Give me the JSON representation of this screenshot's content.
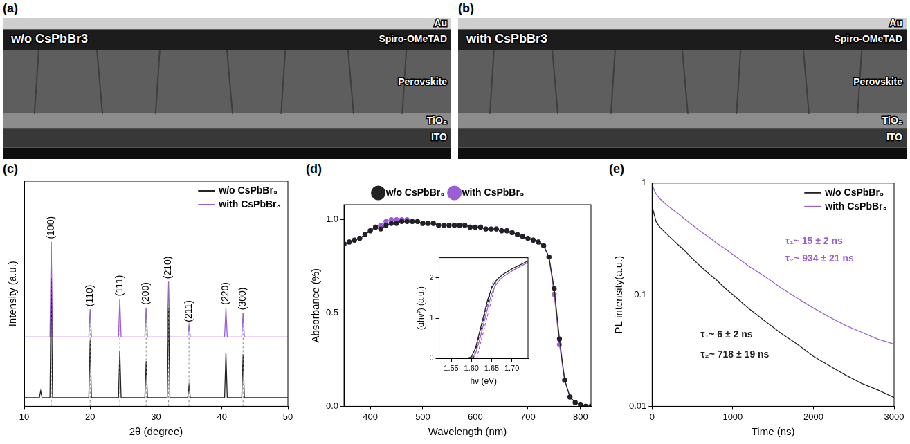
{
  "sem_images": [
    {
      "panel": "(a)",
      "label": "w/o CsPbBr3",
      "layers": [
        "Au",
        "Spiro-OMeTAD",
        "Perovskite",
        "TiO₂",
        "ITO"
      ]
    },
    {
      "panel": "(b)",
      "label": "with CsPbBr3",
      "layers": [
        "Au",
        "Spiro-OMeTAD",
        "Perovskite",
        "TiO₂",
        "ITO"
      ]
    }
  ],
  "chart_data": [
    {
      "panel": "(c)",
      "type": "line",
      "x_label": "2θ (degree)",
      "y_label": "Intensity (a.u.)",
      "xlim": [
        10,
        50
      ],
      "xticks": [
        10,
        20,
        30,
        40,
        50
      ],
      "ylim": [
        0,
        1.3
      ],
      "tick_labels": "x",
      "grid": false,
      "legend": "upper right",
      "peaks": [
        {
          "label": "(100)",
          "x": 14.1
        },
        {
          "label": "(110)",
          "x": 20.0
        },
        {
          "label": "(111)",
          "x": 24.5
        },
        {
          "label": "(200)",
          "x": 28.5
        },
        {
          "label": "(210)",
          "x": 31.9
        },
        {
          "label": "(211)",
          "x": 35.0
        },
        {
          "label": "(220)",
          "x": 40.6
        },
        {
          "label": "(300)",
          "x": 43.2
        }
      ],
      "series": [
        {
          "name": "w/o CsPbBr₃",
          "color": "#222222",
          "x": [
            10,
            12.3,
            12.5,
            12.7,
            13.9,
            14.1,
            14.3,
            19.8,
            20.0,
            20.2,
            24.3,
            24.5,
            24.7,
            28.3,
            28.5,
            28.7,
            31.7,
            31.9,
            32.1,
            34.8,
            35.0,
            35.2,
            40.4,
            40.6,
            40.8,
            43.0,
            43.2,
            43.4,
            50
          ],
          "values": [
            0.05,
            0.05,
            0.09,
            0.05,
            0.05,
            0.74,
            0.05,
            0.05,
            0.38,
            0.05,
            0.05,
            0.32,
            0.05,
            0.05,
            0.26,
            0.05,
            0.05,
            0.57,
            0.05,
            0.05,
            0.12,
            0.05,
            0.05,
            0.31,
            0.05,
            0.05,
            0.3,
            0.05,
            0.05
          ]
        },
        {
          "name": "with CsPbBr₃",
          "color": "#9a5fd6",
          "x": [
            10,
            13.9,
            14.1,
            14.3,
            19.8,
            20.0,
            20.2,
            24.3,
            24.5,
            24.7,
            28.3,
            28.5,
            28.7,
            31.7,
            31.9,
            32.1,
            34.8,
            35.0,
            35.2,
            40.4,
            40.6,
            40.8,
            43.0,
            43.2,
            43.4,
            50
          ],
          "values": [
            0.4,
            0.4,
            0.95,
            0.4,
            0.4,
            0.56,
            0.4,
            0.4,
            0.62,
            0.4,
            0.4,
            0.57,
            0.4,
            0.4,
            0.72,
            0.4,
            0.4,
            0.47,
            0.4,
            0.4,
            0.57,
            0.4,
            0.4,
            0.54,
            0.4,
            0.4
          ]
        }
      ]
    },
    {
      "panel": "(d)",
      "type": "line",
      "x_label": "Wavelength (nm)",
      "y_label": "Absorbance (%)",
      "xlim": [
        350,
        820
      ],
      "xticks": [
        400,
        500,
        600,
        700,
        800
      ],
      "ylim": [
        0,
        1.08
      ],
      "yticks": [
        {
          "value": 0,
          "label": "0.0"
        },
        {
          "value": 0.5,
          "label": "0.5"
        },
        {
          "value": 1,
          "label": "1.0"
        }
      ],
      "grid": false,
      "legend": "top",
      "x": [
        350,
        360,
        370,
        380,
        390,
        400,
        410,
        420,
        430,
        440,
        450,
        460,
        470,
        480,
        490,
        500,
        510,
        520,
        530,
        540,
        550,
        560,
        570,
        580,
        590,
        600,
        610,
        620,
        630,
        640,
        650,
        660,
        670,
        680,
        690,
        700,
        710,
        720,
        730,
        740,
        750,
        760,
        770,
        780,
        790,
        800,
        810,
        820
      ],
      "series": [
        {
          "name": "w/o CsPbBr₃",
          "color": "#222222",
          "marker": "circle",
          "values": [
            0.87,
            0.88,
            0.89,
            0.9,
            0.92,
            0.94,
            0.96,
            0.95,
            0.97,
            0.98,
            0.98,
            0.99,
            0.99,
            0.99,
            0.99,
            0.98,
            0.98,
            0.98,
            0.97,
            0.97,
            0.97,
            0.97,
            0.97,
            0.97,
            0.96,
            0.96,
            0.96,
            0.95,
            0.95,
            0.95,
            0.94,
            0.94,
            0.93,
            0.92,
            0.91,
            0.9,
            0.89,
            0.88,
            0.86,
            0.8,
            0.63,
            0.36,
            0.14,
            0.05,
            0.02,
            0.01,
            0,
            0
          ]
        },
        {
          "name": "with CsPbBr₃",
          "color": "#9a5fd6",
          "marker": "circle",
          "values": [
            0.87,
            0.88,
            0.89,
            0.9,
            0.92,
            0.94,
            0.96,
            0.97,
            0.99,
            1.0,
            1.0,
            1.0,
            1.0,
            0.99,
            0.99,
            0.98,
            0.98,
            0.98,
            0.97,
            0.97,
            0.97,
            0.97,
            0.97,
            0.97,
            0.96,
            0.96,
            0.96,
            0.95,
            0.95,
            0.95,
            0.94,
            0.94,
            0.93,
            0.92,
            0.91,
            0.9,
            0.89,
            0.88,
            0.86,
            0.8,
            0.6,
            0.33,
            0.14,
            0.05,
            0.02,
            0.01,
            0,
            0
          ]
        }
      ],
      "inset": {
        "type": "line",
        "x_label": "hν (eV)",
        "y_label": "(αhν²) (a.u.)",
        "xlim": [
          1.52,
          1.74
        ],
        "xticks": [
          1.55,
          {
            "value": 1.6,
            "label": "1.60"
          },
          1.65,
          {
            "value": 1.7,
            "label": "1.70"
          }
        ],
        "ylim": [
          0,
          2.5
        ],
        "yticks": [
          0,
          1,
          2
        ],
        "grid": false,
        "x": [
          1.52,
          1.54,
          1.56,
          1.58,
          1.59,
          1.6,
          1.61,
          1.62,
          1.63,
          1.64,
          1.65,
          1.66,
          1.67,
          1.68,
          1.7,
          1.72,
          1.74
        ],
        "series": [
          {
            "color": "#222222",
            "values": [
              0,
              0,
              0,
              0,
              0.01,
              0.04,
              0.25,
              0.65,
              1.05,
              1.45,
              1.75,
              1.92,
              2.02,
              2.1,
              2.22,
              2.32,
              2.42
            ]
          },
          {
            "color": "#9a5fd6",
            "values": [
              0,
              0,
              0,
              0,
              0,
              0.02,
              0.12,
              0.45,
              0.85,
              1.25,
              1.6,
              1.82,
              1.95,
              2.04,
              2.17,
              2.28,
              2.38
            ]
          }
        ],
        "fits": [
          {
            "color": "#222222",
            "line_style": "dashed",
            "x": [
              1.605,
              1.655
            ],
            "values": [
              0,
              1.95
            ]
          },
          {
            "color": "#9a5fd6",
            "line_style": "dashed",
            "x": [
              1.613,
              1.662
            ],
            "values": [
              0,
              1.95
            ]
          }
        ]
      }
    },
    {
      "panel": "(e)",
      "type": "line",
      "x_label": "Time (ns)",
      "y_label": "PL intensity(a.u.)",
      "xlim": [
        0,
        3000
      ],
      "xticks": [
        0,
        1000,
        2000,
        3000
      ],
      "ylim": [
        0.01,
        1
      ],
      "yticks": [
        0.01,
        0.1,
        1
      ],
      "log": "y",
      "grid": false,
      "legend": "upper right",
      "x": [
        0,
        50,
        100,
        200,
        300,
        400,
        500,
        600,
        700,
        800,
        900,
        1000,
        1200,
        1400,
        1600,
        1800,
        2000,
        2200,
        2400,
        2600,
        2800,
        3000
      ],
      "series": [
        {
          "name": "w/o CsPbBr₃",
          "color": "#222222",
          "values": [
            0.62,
            0.45,
            0.4,
            0.34,
            0.29,
            0.25,
            0.21,
            0.18,
            0.155,
            0.135,
            0.115,
            0.1,
            0.075,
            0.058,
            0.045,
            0.036,
            0.028,
            0.023,
            0.019,
            0.016,
            0.014,
            0.012
          ]
        },
        {
          "name": "with CsPbBr₃",
          "color": "#9a5fd6",
          "values": [
            0.95,
            0.8,
            0.72,
            0.62,
            0.55,
            0.48,
            0.42,
            0.37,
            0.33,
            0.29,
            0.26,
            0.23,
            0.18,
            0.145,
            0.115,
            0.093,
            0.076,
            0.063,
            0.053,
            0.046,
            0.04,
            0.036
          ]
        }
      ],
      "annotations": [
        {
          "text": "τ₁~ 15 ± 2 ns",
          "color": "#9a5fd6"
        },
        {
          "text": "τ₂~ 934 ± 21 ns",
          "color": "#9a5fd6"
        },
        {
          "text": "τ₁~ 6 ± 2 ns",
          "color": "#222222"
        },
        {
          "text": "τ₂~ 718 ± 19 ns",
          "color": "#222222"
        }
      ]
    }
  ]
}
